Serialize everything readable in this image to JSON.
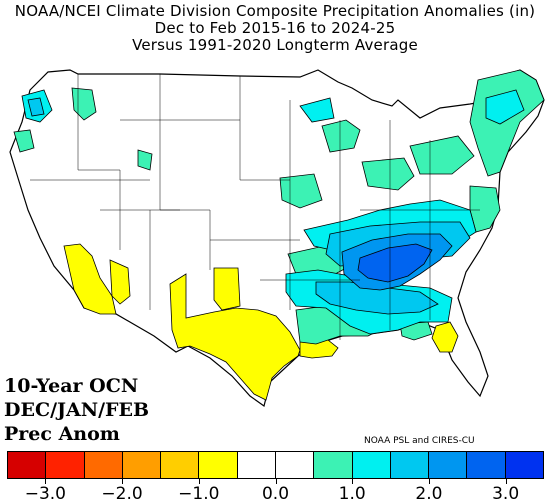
{
  "title": {
    "line1": "NOAA/NCEI Climate Division Composite Precipitation Anomalies (in)",
    "line2": "Dec to Feb 2015-16 to 2024-25",
    "line3": "Versus 1991-2020 Longterm Average"
  },
  "overlay": {
    "line1": "10-Year OCN",
    "line2": "DEC/JAN/FEB",
    "line3": "Prec Anom"
  },
  "credit": "NOAA PSL and CIRES-CU",
  "colorbar": {
    "colors": [
      "#d60000",
      "#ff2200",
      "#ff6a00",
      "#ff9e00",
      "#ffce00",
      "#ffff00",
      "#ffffff",
      "#ffffff",
      "#3cf2b4",
      "#00f0f0",
      "#00c8f0",
      "#0096f0",
      "#0064f0",
      "#0032f0"
    ],
    "tick_labels": [
      "-3.0",
      "-2.0",
      "-1.0",
      "0.0",
      "1.0",
      "2.0",
      "3.0"
    ],
    "range": [
      -3.5,
      3.5
    ]
  },
  "legend_colors": {
    "dry": "#ffff00",
    "light_wet": "#3cf2b4",
    "wet": "#00f0f0",
    "wetter": "#00c8f0",
    "very_wet": "#0096f0",
    "wettest": "#0064f0",
    "neutral": "#ffffff",
    "border": "#000000"
  }
}
